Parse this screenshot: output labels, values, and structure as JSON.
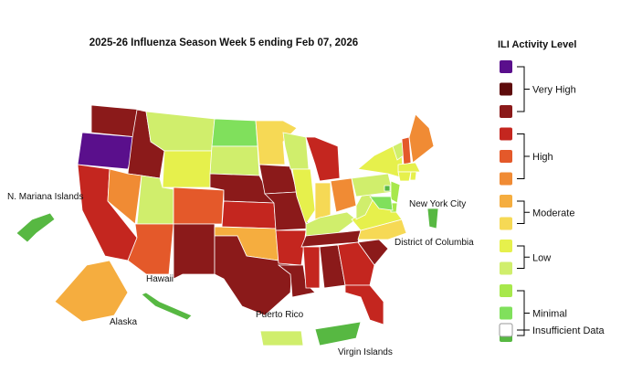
{
  "title": "2025-26 Influenza Season Week 5 ending Feb 07, 2026",
  "legend": {
    "title": "ILI Activity Level",
    "levels": [
      {
        "label": "Very High",
        "colors": [
          "#5a0f8c",
          "#5e0b0b",
          "#8b1a1a"
        ]
      },
      {
        "label": "High",
        "colors": [
          "#c4261f",
          "#e4592a",
          "#f08b34"
        ]
      },
      {
        "label": "Moderate",
        "colors": [
          "#f5ad3f",
          "#f6d955"
        ]
      },
      {
        "label": "Low",
        "colors": [
          "#e6f04c",
          "#d0ee6c"
        ]
      },
      {
        "label": "Minimal",
        "colors": [
          "#a7e84c",
          "#80e05c",
          "#57b842"
        ]
      }
    ],
    "insufficient": {
      "label": "Insufficient Data",
      "color": "#ffffff"
    }
  },
  "regions": [
    "#8b1a1a",
    "#5a0f8c",
    "#c4261f",
    "#8b1a1a",
    "#f08b34",
    "#d0ee6c",
    "#e4592a",
    "#d0ee6c",
    "#e6f04c",
    "#e4592a",
    "#8b1a1a",
    "#80e05c",
    "#d0ee6c",
    "#8b1a1a",
    "#c4261f",
    "#f5ad3f",
    "#8b1a1a",
    "#f6d955",
    "#8b1a1a",
    "#8b1a1a",
    "#c4261f",
    "#8b1a1a",
    "#d0ee6c",
    "#e6f04c",
    "#c4261f",
    "#f6d955",
    "#f08b34",
    "#d0ee6c",
    "#8b1a1a",
    "#c4261f",
    "#8b1a1a",
    "#c4261f",
    "#c4261f",
    "#8b1a1a",
    "#f6d955",
    "#e6f04c",
    "#d0ee6c",
    "#d0ee6c",
    "#e6f04c",
    "#d0ee6c",
    "#e4592a",
    "#f08b34",
    "#e6f04c",
    "#e6f04c",
    "#e6f04c",
    "#a7e84c",
    "#a7e84c",
    "#80e05c",
    "#f5ad3f",
    "#57b842",
    "#d0ee6c",
    "#57b842",
    "#57b842",
    "#57b842",
    "#57b842"
  ],
  "labels": [
    "N. Mariana Islands",
    "Hawaii",
    "Alaska",
    "Puerto Rico",
    "Virgin Islands",
    "New York City",
    "District of Columbia"
  ]
}
